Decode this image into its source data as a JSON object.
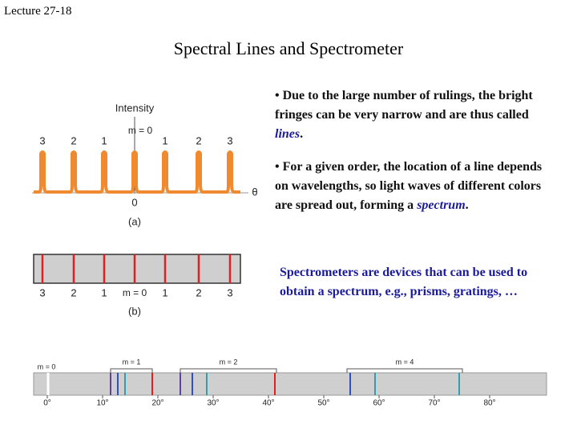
{
  "header": {
    "lecture": "Lecture 27-18",
    "title": "Spectral Lines and Spectrometer"
  },
  "bullets": [
    {
      "text": "• Due to the large number of rulings, the bright fringes can be very narrow and are thus called ",
      "emphasis": "lines",
      "end": "."
    },
    {
      "text": "• For a given order, the location of a line depends on wavelengths, so light waves of different colors are spread out, forming a ",
      "emphasis": "spectrum",
      "end": "."
    }
  ],
  "note": "Spectrometers are devices that can be used to obtain a spectrum, e.g., prisms, gratings, …",
  "figure_a": {
    "axis_label": "Intensity",
    "center_order": "m = 0",
    "orders": [
      "3",
      "2",
      "1",
      "1",
      "2",
      "3"
    ],
    "origin": "0",
    "angle": "θ",
    "caption": "(a)"
  },
  "figure_b": {
    "center_order": "m = 0",
    "orders": [
      "3",
      "2",
      "1",
      "1",
      "2",
      "3"
    ],
    "caption": "(b)"
  },
  "figure_c": {
    "orders": [
      "m = 0",
      "m = 1",
      "m = 2",
      "m = 4"
    ],
    "angles": [
      "0°",
      "10°",
      "20°",
      "30°",
      "40°",
      "50°",
      "60°",
      "70°",
      "80°"
    ]
  }
}
